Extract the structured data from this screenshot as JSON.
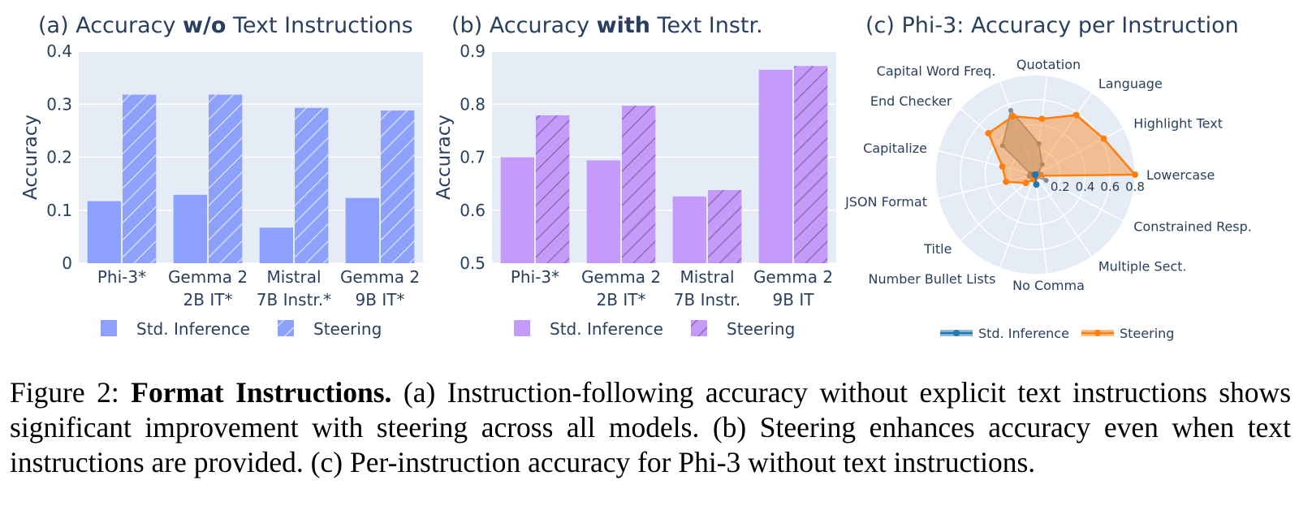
{
  "colors": {
    "plot_bg": "#e5ecf6",
    "text": "#2a3f5f",
    "bar_a": "#8da0fc",
    "bar_b": "#c49bfb",
    "radar_std": "#1f77b4",
    "radar_steer": "#ff7f0e"
  },
  "chart_data": [
    {
      "type": "bar",
      "title_parts": [
        "(a) Accuracy ",
        "w/o",
        " Text Instructions"
      ],
      "ylabel": "Accuracy",
      "ylim": [
        0,
        0.4
      ],
      "yticks": [
        "0",
        "0.1",
        "0.2",
        "0.3",
        "0.4"
      ],
      "grid": true,
      "categories": [
        [
          "Phi-3*"
        ],
        [
          "Gemma 2",
          "2B IT*"
        ],
        [
          "Mistral",
          "7B Instr.*"
        ],
        [
          "Gemma 2",
          "9B IT*"
        ]
      ],
      "series": [
        {
          "name": "Std. Inference",
          "values": [
            0.117,
            0.129,
            0.067,
            0.123
          ]
        },
        {
          "name": "Steering",
          "values": [
            0.318,
            0.318,
            0.293,
            0.288
          ]
        }
      ],
      "legend": "bottom"
    },
    {
      "type": "bar",
      "title_parts": [
        "(b) Accuracy ",
        "with",
        " Text Instr."
      ],
      "ylabel": "Accuracy",
      "ylim": [
        0.5,
        0.9
      ],
      "yticks": [
        "0.5",
        "0.6",
        "0.7",
        "0.8",
        "0.9"
      ],
      "grid": true,
      "categories": [
        [
          "Phi-3*"
        ],
        [
          "Gemma 2",
          "2B IT*"
        ],
        [
          "Mistral",
          "7B Instr."
        ],
        [
          "Gemma 2",
          "9B IT"
        ]
      ],
      "series": [
        {
          "name": "Std. Inference",
          "values": [
            0.7,
            0.694,
            0.626,
            0.865
          ]
        },
        {
          "name": "Steering",
          "values": [
            0.779,
            0.797,
            0.638,
            0.872
          ]
        }
      ],
      "legend": "bottom"
    },
    {
      "type": "radar",
      "title": "(c) Phi-3: Accuracy per Instruction",
      "categories": [
        "Lowercase",
        "Highlight Text",
        "Language",
        "Quotation",
        "Capital Word Freq.",
        "End Checker",
        "Capitalize",
        "JSON Format",
        "Title",
        "Number Bullet Lists",
        "No Comma",
        "Multiple Sect.",
        "Constrained Resp."
      ],
      "radial_range": [
        0,
        0.8
      ],
      "radial_ticks": [
        "0.2",
        "0.4",
        "0.6",
        "0.8"
      ],
      "series": [
        {
          "name": "Std. Inference",
          "values": [
            0.0,
            0.0,
            0.0,
            0.0,
            0.0,
            0.0,
            0.0,
            0.0,
            0.0,
            0.0,
            0.08,
            0.0,
            0.0
          ]
        },
        {
          "name": "Steering",
          "values": [
            0.8,
            0.62,
            0.58,
            0.45,
            0.5,
            0.5,
            0.27,
            0.24,
            0.1,
            0.04,
            0.02,
            0.02,
            0.02
          ]
        }
      ],
      "ghost_series": [
        0.05,
        0.03,
        0.1,
        0.25,
        0.55,
        0.35,
        0.04,
        0.05,
        0.03,
        0.02,
        0.02,
        0.02,
        0.1
      ],
      "legend": "bottom"
    }
  ],
  "caption": {
    "label": "Figure 2: ",
    "bold": "Format Instructions.",
    "text": " (a) Instruction-following accuracy without explicit text instructions shows significant improvement with steering across all models. (b) Steering enhances accuracy even when text instructions are provided. (c) Per-instruction accuracy for Phi-3 without text instructions."
  }
}
